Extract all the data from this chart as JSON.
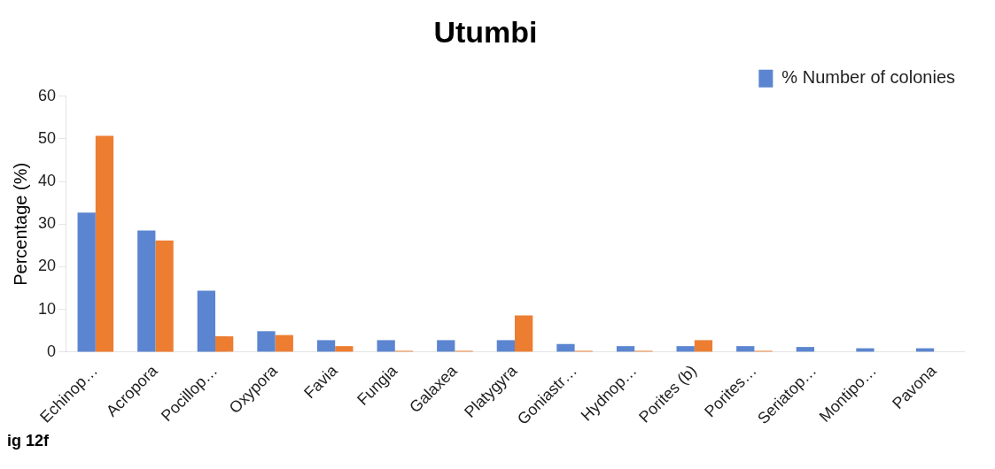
{
  "chart_data": {
    "type": "bar",
    "title": "Utumbi",
    "ylabel": "Percentage (%)",
    "categories": [
      "Echinop…",
      "Acropora",
      "Pocillop…",
      "Oxypora",
      "Favia",
      "Fungia",
      "Galaxea",
      "Platygyra",
      "Goniastr…",
      "Hydnop…",
      "Porites (b)",
      "Porites…",
      "Seriatop…",
      "Montipo…",
      "Pavona"
    ],
    "series": [
      {
        "name": "% Number of colonies",
        "color": "#5b85d0",
        "values": [
          32.7,
          28.5,
          14.4,
          4.9,
          2.8,
          2.8,
          2.8,
          2.8,
          1.9,
          1.4,
          1.4,
          1.4,
          1.2,
          0.9,
          0.9
        ]
      },
      {
        "color": "#ed7d31",
        "values": [
          50.7,
          26.2,
          3.7,
          4.0,
          1.4,
          0.3,
          0.3,
          8.6,
          0.3,
          0.3,
          2.8,
          0.3,
          null,
          null,
          null
        ]
      }
    ],
    "ylim": [
      0,
      60
    ],
    "yticks": [
      0,
      10,
      20,
      30,
      40,
      50,
      60
    ],
    "grid": false,
    "legend": "top right",
    "annotations": [
      "ig 12f"
    ]
  }
}
